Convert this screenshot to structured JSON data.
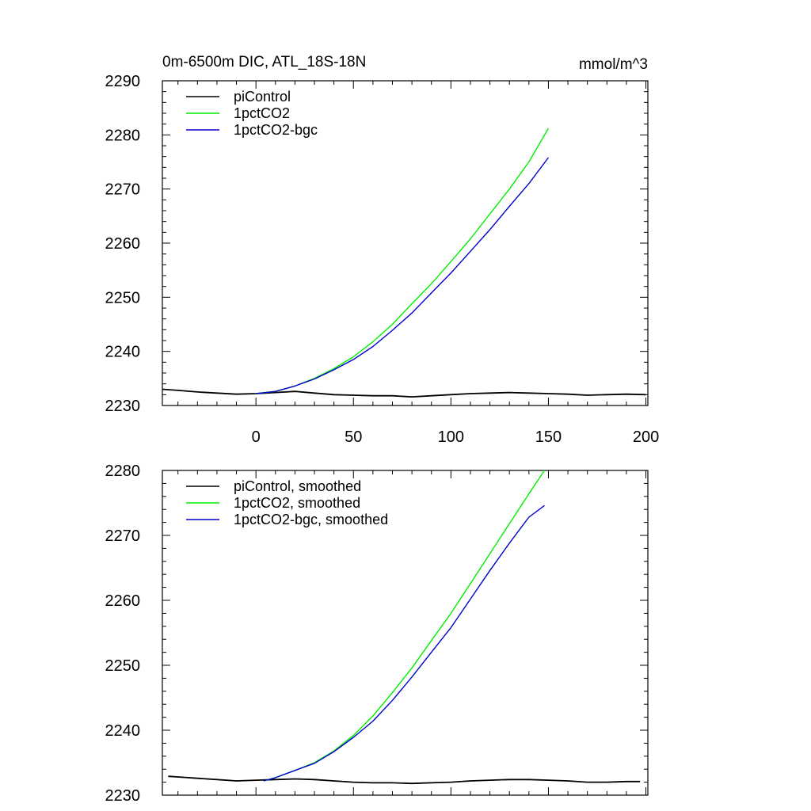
{
  "figure": {
    "title_left": "0m-6500m DIC, ATL_18S-18N",
    "title_right": "mmol/m^3"
  },
  "chart_data": [
    {
      "type": "line",
      "xlim": [
        -48,
        201
      ],
      "ylim": [
        2230,
        2290
      ],
      "xticks": [
        0,
        50,
        100,
        150,
        200
      ],
      "yticks": [
        2230,
        2240,
        2250,
        2260,
        2270,
        2280,
        2290
      ],
      "x_tick_labels_visible": true,
      "legend_position": "top-left",
      "grid": false,
      "series": [
        {
          "name": "piControl",
          "color": "#000000",
          "x": [
            -48,
            -40,
            -30,
            -20,
            -10,
            0,
            10,
            20,
            30,
            40,
            50,
            60,
            70,
            80,
            90,
            100,
            110,
            120,
            130,
            140,
            150,
            160,
            170,
            180,
            190,
            200
          ],
          "y": [
            2233.0,
            2232.8,
            2232.5,
            2232.3,
            2232.1,
            2232.2,
            2232.4,
            2232.6,
            2232.3,
            2232.0,
            2231.9,
            2231.8,
            2231.8,
            2231.6,
            2231.8,
            2232.0,
            2232.2,
            2232.3,
            2232.4,
            2232.3,
            2232.2,
            2232.1,
            2231.9,
            2232.0,
            2232.1,
            2232.0
          ]
        },
        {
          "name": "1pctCO2",
          "color": "#00ee00",
          "x": [
            0,
            10,
            20,
            30,
            40,
            50,
            60,
            70,
            80,
            90,
            100,
            110,
            120,
            130,
            140,
            150
          ],
          "y": [
            2232.2,
            2232.6,
            2233.6,
            2235.0,
            2236.8,
            2239.0,
            2241.8,
            2245.0,
            2248.8,
            2252.5,
            2256.6,
            2260.8,
            2265.4,
            2270.0,
            2275.0,
            2281.2
          ]
        },
        {
          "name": "1pctCO2-bgc",
          "color": "#0000cc",
          "x": [
            0,
            10,
            20,
            30,
            40,
            50,
            60,
            70,
            80,
            90,
            100,
            110,
            120,
            130,
            140,
            150
          ],
          "y": [
            2232.2,
            2232.6,
            2233.6,
            2234.9,
            2236.6,
            2238.5,
            2240.9,
            2243.9,
            2247.1,
            2250.8,
            2254.5,
            2258.5,
            2262.5,
            2266.8,
            2271.0,
            2275.8
          ]
        }
      ]
    },
    {
      "type": "line",
      "xlim": [
        -48,
        201
      ],
      "ylim": [
        2230,
        2280
      ],
      "xticks": [
        0,
        50,
        100,
        150,
        200
      ],
      "yticks": [
        2230,
        2240,
        2250,
        2260,
        2270,
        2280
      ],
      "x_tick_labels_visible": false,
      "legend_position": "top-left",
      "grid": false,
      "series": [
        {
          "name": "piControl, smoothed",
          "color": "#000000",
          "x": [
            -45,
            -40,
            -30,
            -20,
            -10,
            0,
            10,
            20,
            30,
            40,
            50,
            60,
            70,
            80,
            90,
            100,
            110,
            120,
            130,
            140,
            150,
            160,
            170,
            180,
            190,
            197
          ],
          "y": [
            2232.9,
            2232.8,
            2232.6,
            2232.4,
            2232.2,
            2232.3,
            2232.4,
            2232.5,
            2232.4,
            2232.2,
            2232.0,
            2231.9,
            2231.9,
            2231.8,
            2231.9,
            2232.0,
            2232.2,
            2232.3,
            2232.4,
            2232.4,
            2232.3,
            2232.2,
            2232.0,
            2232.0,
            2232.1,
            2232.1
          ]
        },
        {
          "name": "1pctCO2, smoothed",
          "color": "#00ee00",
          "x": [
            4,
            10,
            20,
            30,
            40,
            50,
            60,
            70,
            80,
            90,
            100,
            110,
            120,
            130,
            140,
            148
          ],
          "y": [
            2232.2,
            2232.7,
            2233.8,
            2235.0,
            2236.8,
            2239.2,
            2242.2,
            2245.8,
            2249.6,
            2253.8,
            2258.0,
            2262.6,
            2267.2,
            2271.8,
            2276.4,
            2280.0
          ]
        },
        {
          "name": "1pctCO2-bgc, smoothed",
          "color": "#0000cc",
          "x": [
            4,
            10,
            20,
            30,
            40,
            50,
            60,
            70,
            80,
            90,
            100,
            110,
            120,
            130,
            140,
            148
          ],
          "y": [
            2232.2,
            2232.7,
            2233.8,
            2234.9,
            2236.7,
            2238.9,
            2241.4,
            2244.6,
            2248.2,
            2252.0,
            2255.8,
            2260.2,
            2264.6,
            2268.8,
            2272.8,
            2274.6
          ]
        }
      ]
    }
  ]
}
